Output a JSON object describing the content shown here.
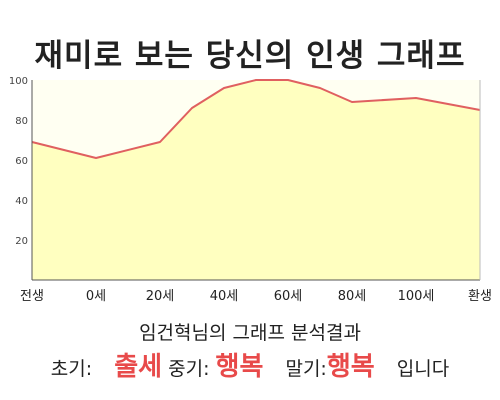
{
  "title": "재미로 보는 당신의 인생 그래프",
  "chart_data": {
    "type": "area",
    "categories": [
      "전생",
      "0세",
      "20세",
      "40세",
      "60세",
      "80세",
      "100세",
      "환생"
    ],
    "x_ticks": [
      "전생",
      "0세",
      "20세",
      "40세",
      "60세",
      "80세",
      "100세",
      "환생"
    ],
    "y_ticks": [
      20,
      40,
      60,
      80,
      100
    ],
    "ylim": [
      0,
      100
    ],
    "grid": false,
    "series": [
      {
        "x": [
          0,
          1,
          2,
          2.5,
          3,
          3.5,
          4,
          4.5,
          5,
          6,
          7
        ],
        "values": [
          69,
          61,
          69,
          86,
          96,
          100,
          100,
          96,
          89,
          91,
          85
        ]
      }
    ],
    "colors": {
      "fill": "#ffffc0",
      "line": "#e06060",
      "plot_bg": "#fffff2"
    }
  },
  "result": {
    "title": "임건혁님의 그래프 분석결과",
    "early_label": "초기:",
    "early_value": "출세",
    "mid_label": "중기:",
    "mid_value": "행복",
    "late_label": "말기:",
    "late_value": "행복",
    "suffix": "입니다"
  }
}
